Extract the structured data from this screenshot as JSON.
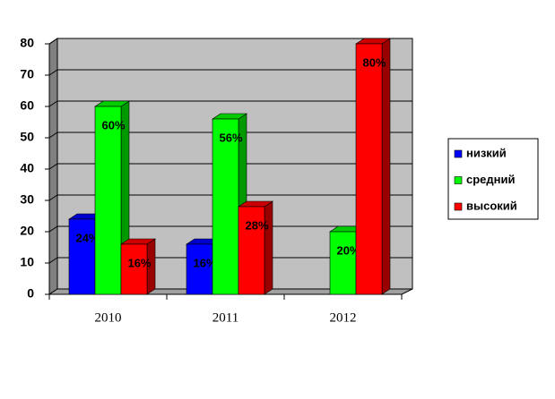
{
  "chart_data": {
    "type": "bar3d",
    "categories": [
      "2010",
      "2011",
      "2012"
    ],
    "series": [
      {
        "name": "низкий",
        "color": "#0000ff",
        "values": [
          24,
          16,
          null
        ],
        "value_labels": [
          "24%",
          "16%",
          null
        ]
      },
      {
        "name": "средний",
        "color": "#00ff00",
        "values": [
          60,
          56,
          20
        ],
        "value_labels": [
          "60%",
          "56%",
          "20%"
        ]
      },
      {
        "name": "высокий",
        "color": "#ff0000",
        "values": [
          16,
          28,
          80
        ],
        "value_labels": [
          "16%",
          "28%",
          "80%"
        ]
      }
    ],
    "ylim": [
      0,
      80
    ],
    "yticks": [
      0,
      10,
      20,
      30,
      40,
      50,
      60,
      70,
      80
    ],
    "grid": true,
    "legend": "right"
  }
}
